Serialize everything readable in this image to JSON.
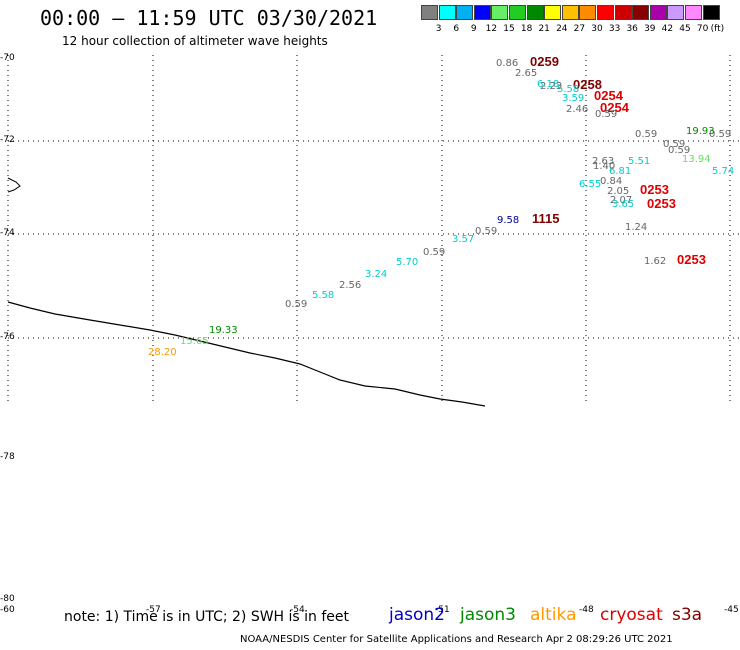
{
  "title": "00:00 – 11:59 UTC 03/30/2021",
  "subtitle": "12 hour collection of altimeter wave heights",
  "legend": {
    "colors": [
      "#808080",
      "#00ffff",
      "#00b0f0",
      "#0000ff",
      "#66ee66",
      "#22cc22",
      "#008800",
      "#ffff00",
      "#ffc000",
      "#ff8c00",
      "#ff0000",
      "#cc0000",
      "#880000",
      "#aa00aa",
      "#cc99ff",
      "#ff88ff",
      "#000000"
    ],
    "labels": [
      "3",
      "6",
      "9",
      "12",
      "15",
      "18",
      "21",
      "24",
      "27",
      "30",
      "33",
      "36",
      "39",
      "42",
      "45",
      "70"
    ],
    "unit": "(ft)"
  },
  "lat_labels": [
    "-70",
    "-72",
    "-74",
    "-76",
    "-78",
    "-80"
  ],
  "lon_labels": [
    "-60",
    "-57",
    "-54",
    "-51",
    "-48",
    "-45"
  ],
  "wave_labels": [
    {
      "text": "0.86",
      "color": "#666666"
    },
    {
      "text": "0259",
      "color": "#800000"
    },
    {
      "text": "2.65",
      "color": "#666666"
    },
    {
      "text": "6.18",
      "color": "#00cccc"
    },
    {
      "text": "2.23",
      "color": "#666666"
    },
    {
      "text": "0258",
      "color": "#800000"
    },
    {
      "text": "5.58",
      "color": "#00cccc"
    },
    {
      "text": "3.59",
      "color": "#00cccc"
    },
    {
      "text": "0254",
      "color": "#dd0000"
    },
    {
      "text": "2.46",
      "color": "#666666"
    },
    {
      "text": "0254",
      "color": "#dd0000"
    },
    {
      "text": "0.59",
      "color": "#666666"
    },
    {
      "text": "0.59",
      "color": "#666666"
    },
    {
      "text": "0.59",
      "color": "#666666"
    },
    {
      "text": "19.93",
      "color": "#008800"
    },
    {
      "text": "0.59",
      "color": "#666666"
    },
    {
      "text": "0.59",
      "color": "#666666"
    },
    {
      "text": "2.63",
      "color": "#666666"
    },
    {
      "text": "1.40",
      "color": "#666666"
    },
    {
      "text": "5.51",
      "color": "#00cccc"
    },
    {
      "text": "13.94",
      "color": "#66dd66"
    },
    {
      "text": "6.81",
      "color": "#00cccc"
    },
    {
      "text": "5.74",
      "color": "#00cccc"
    },
    {
      "text": "0.84",
      "color": "#666666"
    },
    {
      "text": "6.55",
      "color": "#00cccc"
    },
    {
      "text": "2.05",
      "color": "#666666"
    },
    {
      "text": "0253",
      "color": "#dd0000"
    },
    {
      "text": "2.07",
      "color": "#666666"
    },
    {
      "text": "3.65",
      "color": "#00cccc"
    },
    {
      "text": "0253",
      "color": "#dd0000"
    },
    {
      "text": "9.58",
      "color": "#000099"
    },
    {
      "text": "1115",
      "color": "#800000"
    },
    {
      "text": "1.24",
      "color": "#666666"
    },
    {
      "text": "0.59",
      "color": "#666666"
    },
    {
      "text": "3.57",
      "color": "#00cccc"
    },
    {
      "text": "0.59",
      "color": "#666666"
    },
    {
      "text": "1.62",
      "color": "#666666"
    },
    {
      "text": "0253",
      "color": "#dd0000"
    },
    {
      "text": "5.70",
      "color": "#00cccc"
    },
    {
      "text": "3.24",
      "color": "#00cccc"
    },
    {
      "text": "2.56",
      "color": "#666666"
    },
    {
      "text": "5.58",
      "color": "#00cccc"
    },
    {
      "text": "0.59",
      "color": "#666666"
    },
    {
      "text": "19.33",
      "color": "#008800"
    },
    {
      "text": "15.65",
      "color": "#66dd66"
    },
    {
      "text": "28.20",
      "color": "#ff9900"
    }
  ],
  "note": "note: 1) Time is in UTC; 2) SWH is in feet",
  "satellites": [
    {
      "text": "jason2",
      "color": "#0000cc"
    },
    {
      "text": "jason3",
      "color": "#008800"
    },
    {
      "text": "altika",
      "color": "#ff9900"
    },
    {
      "text": "cryosat",
      "color": "#dd0000"
    },
    {
      "text": "s3a",
      "color": "#800000"
    }
  ],
  "credit": "NOAA/NESDIS Center for Satellite Applications and Research    Apr  2 08:29:26 UTC 2021"
}
